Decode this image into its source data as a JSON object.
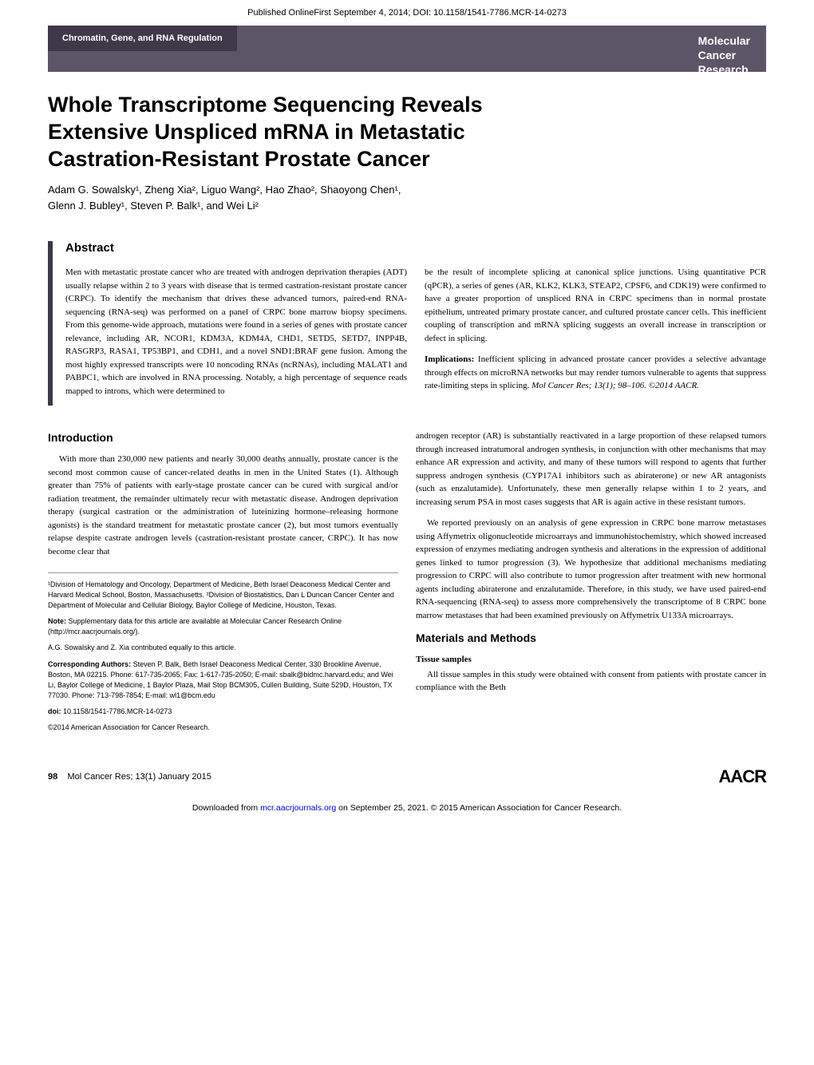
{
  "top_line": "Published OnlineFirst September 4, 2014; DOI: 10.1158/1541-7786.MCR-14-0273",
  "header": {
    "section_label": "Chromatin, Gene, and RNA Regulation",
    "journal_line1": "Molecular",
    "journal_line2": "Cancer",
    "journal_line3": "Research"
  },
  "title_line1": "Whole Transcriptome Sequencing Reveals",
  "title_line2": "Extensive Unspliced mRNA in Metastatic",
  "title_line3": "Castration-Resistant Prostate Cancer",
  "authors_line1": "Adam G. Sowalsky¹, Zheng Xia², Liguo Wang², Hao Zhao², Shaoyong Chen¹,",
  "authors_line2": "Glenn J. Bubley¹, Steven P. Balk¹, and Wei Li²",
  "abstract": {
    "heading": "Abstract",
    "left_p1": "Men with metastatic prostate cancer who are treated with androgen deprivation therapies (ADT) usually relapse within 2 to 3 years with disease that is termed castration-resistant prostate cancer (CRPC). To identify the mechanism that drives these advanced tumors, paired-end RNA-sequencing (RNA-seq) was performed on a panel of CRPC bone marrow biopsy specimens. From this genome-wide approach, mutations were found in a series of genes with prostate cancer relevance, including AR, NCOR1, KDM3A, KDM4A, CHD1, SETD5, SETD7, INPP4B, RASGRP3, RASA1, TP53BP1, and CDH1, and a novel SND1:BRAF gene fusion. Among the most highly expressed transcripts were 10 noncoding RNAs (ncRNAs), including MALAT1 and PABPC1, which are involved in RNA processing. Notably, a high percentage of sequence reads mapped to introns, which were determined to",
    "right_p1": "be the result of incomplete splicing at canonical splice junctions. Using quantitative PCR (qPCR), a series of genes (AR, KLK2, KLK3, STEAP2, CPSF6, and CDK19) were confirmed to have a greater proportion of unspliced RNA in CRPC specimens than in normal prostate epithelium, untreated primary prostate cancer, and cultured prostate cancer cells. This inefficient coupling of transcription and mRNA splicing suggests an overall increase in transcription or defect in splicing.",
    "implications_label": "Implications:",
    "right_p2": " Inefficient splicing in advanced prostate cancer provides a selective advantage through effects on microRNA networks but may render tumors vulnerable to agents that suppress rate-limiting steps in splicing. ",
    "citation": "Mol Cancer Res; 13(1); 98–106. ©2014 AACR."
  },
  "intro": {
    "heading": "Introduction",
    "p1": "With more than 230,000 new patients and nearly 30,000 deaths annually, prostate cancer is the second most common cause of cancer-related deaths in men in the United States (1). Although greater than 75% of patients with early-stage prostate cancer can be cured with surgical and/or radiation treatment, the remainder ultimately recur with metastatic disease. Androgen deprivation therapy (surgical castration or the administration of luteinizing hormone–releasing hormone agonists) is the standard treatment for metastatic prostate cancer (2), but most tumors eventually relapse despite castrate androgen levels (castration-resistant prostate cancer, CRPC). It has now become clear that"
  },
  "right": {
    "p1": "androgen receptor (AR) is substantially reactivated in a large proportion of these relapsed tumors through increased intratumoral androgen synthesis, in conjunction with other mechanisms that may enhance AR expression and activity, and many of these tumors will respond to agents that further suppress androgen synthesis (CYP17A1 inhibitors such as abiraterone) or new AR antagonists (such as enzalutamide). Unfortunately, these men generally relapse within 1 to 2 years, and increasing serum PSA in most cases suggests that AR is again active in these resistant tumors.",
    "p2": "We reported previously on an analysis of gene expression in CRPC bone marrow metastases using Affymetrix oligonucleotide microarrays and immunohistochemistry, which showed increased expression of enzymes mediating androgen synthesis and alterations in the expression of additional genes linked to tumor progression (3). We hypothesize that additional mechanisms mediating progression to CRPC will also contribute to tumor progression after treatment with new hormonal agents including abiraterone and enzalutamide. Therefore, in this study, we have used paired-end RNA-sequencing (RNA-seq) to assess more comprehensively the transcriptome of 8 CRPC bone marrow metastases that had been examined previously on Affymetrix U133A microarrays.",
    "mm_heading": "Materials and Methods",
    "mm_sub": "Tissue samples",
    "mm_p1": "All tissue samples in this study were obtained with consent from patients with prostate cancer in compliance with the Beth"
  },
  "affiliations": {
    "p1": "¹Division of Hematology and Oncology, Department of Medicine, Beth Israel Deaconess Medical Center and Harvard Medical School, Boston, Massachusetts. ²Division of Biostatistics, Dan L Duncan Cancer Center and Department of Molecular and Cellular Biology, Baylor College of Medicine, Houston, Texas.",
    "note_label": "Note:",
    "note": " Supplementary data for this article are available at Molecular Cancer Research Online (http://mcr.aacrjournals.org/).",
    "equal": "A.G. Sowalsky and Z. Xia contributed equally to this article.",
    "corr_label": "Corresponding Authors:",
    "corr": " Steven P. Balk, Beth Israel Deaconess Medical Center, 330 Brookline Avenue, Boston, MA 02215. Phone: 617-735-2065; Fax: 1-617-735-2050; E-mail: sbalk@bidmc.harvard.edu; and Wei Li, Baylor College of Medicine, 1 Baylor Plaza, Mail Stop BCM305, Cullen Building, Suite 529D, Houston, TX 77030. Phone: 713-798-7854; E-mail: wl1@bcm.edu",
    "doi_label": "doi:",
    "doi": " 10.1158/1541-7786.MCR-14-0273",
    "copyright": "©2014 American Association for Cancer Research."
  },
  "footer": {
    "page_num": "98",
    "journal_info": "Mol Cancer Res; 13(1) January 2015",
    "logo": "AACR"
  },
  "download": {
    "prefix": "Downloaded from ",
    "link": "mcr.aacrjournals.org",
    "suffix": " on September 25, 2021. © 2015 American Association for Cancer Research."
  }
}
